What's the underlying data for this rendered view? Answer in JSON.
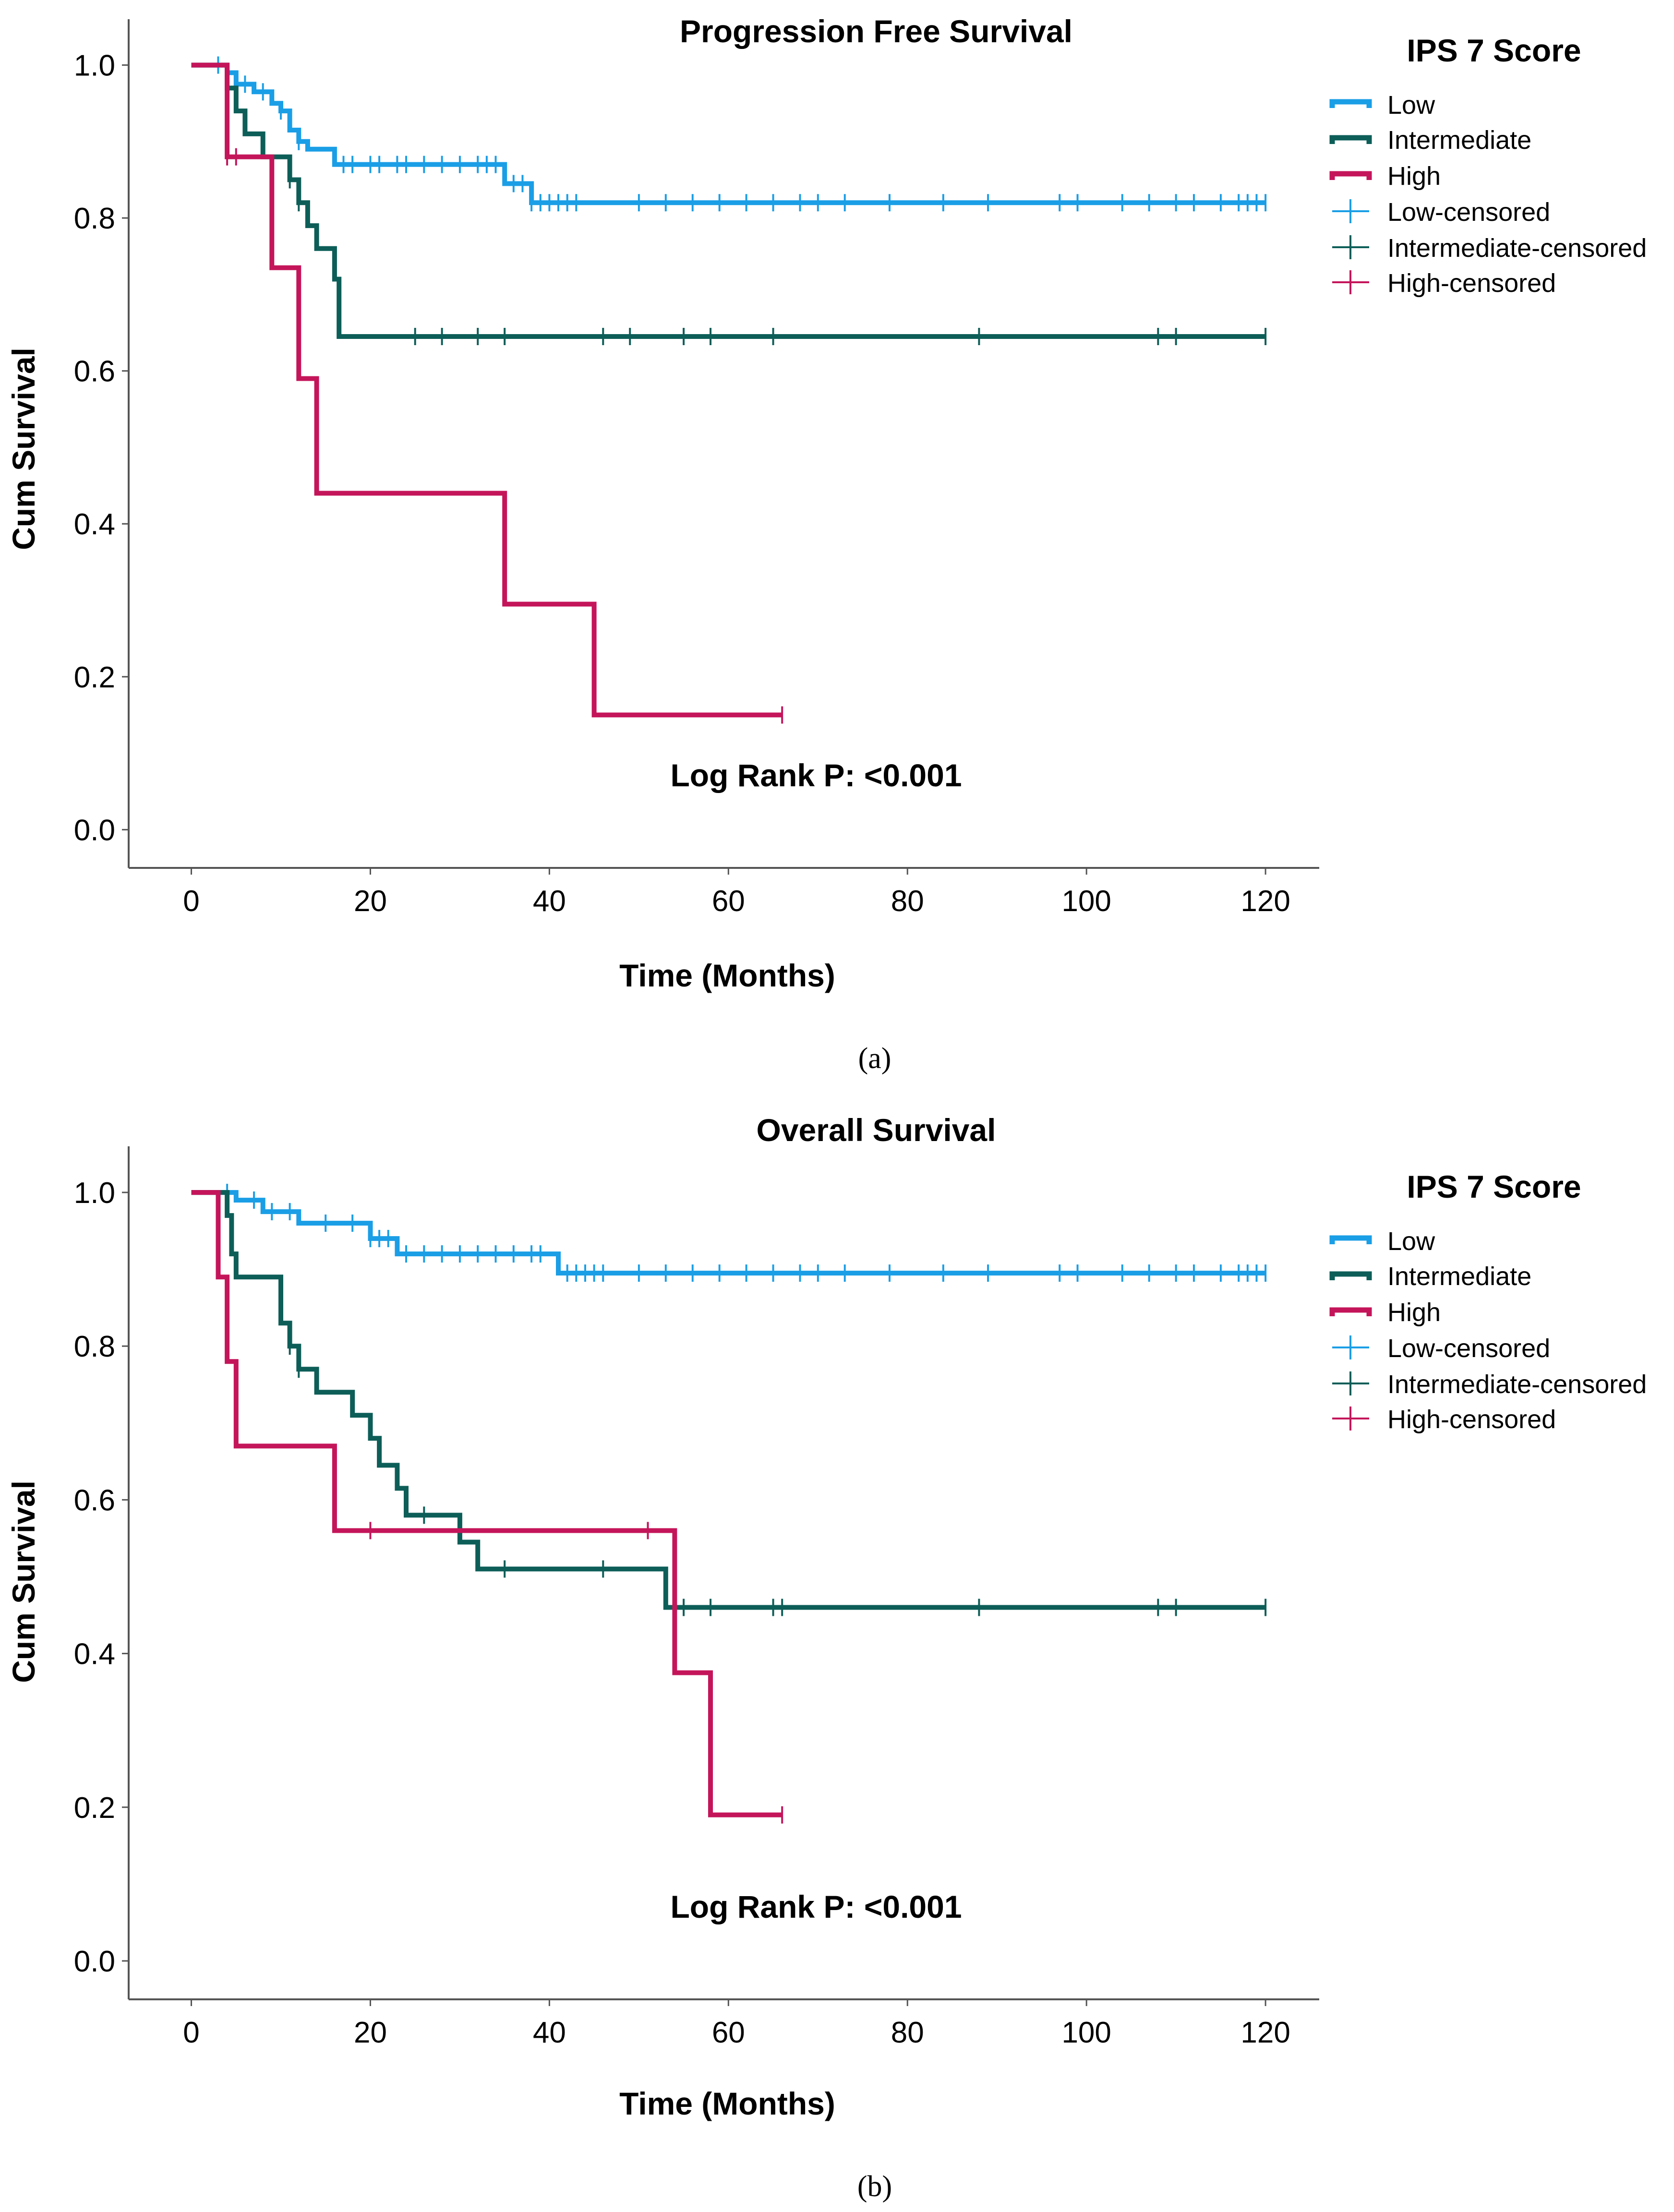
{
  "panels": [
    {
      "caption": "(a)",
      "chart_data": {
        "type": "line",
        "subtype": "kaplan-meier",
        "title": "Progression Free Survival",
        "xlabel": "Time (Months)",
        "ylabel": "Cum Survival",
        "xlim": [
          -7,
          126
        ],
        "ylim": [
          -0.05,
          1.06
        ],
        "xticks": [
          0,
          20,
          40,
          60,
          80,
          100,
          120
        ],
        "yticks": [
          0.0,
          0.2,
          0.4,
          0.6,
          0.8,
          1.0
        ],
        "xtick_labels": [
          "0",
          "20",
          "40",
          "60",
          "80",
          "100",
          "120"
        ],
        "ytick_labels": [
          "0.0",
          "0.2",
          "0.4",
          "0.6",
          "0.8",
          "1.0"
        ],
        "annotation": "Log Rank P: <0.001",
        "legend_title": "IPS 7 Score",
        "series": [
          {
            "name": "Low",
            "censored_label": "Low-censored",
            "color": "#1a9ee6",
            "points": [
              [
                0,
                1.0
              ],
              [
                4,
                1.0
              ],
              [
                4,
                0.99
              ],
              [
                5,
                0.99
              ],
              [
                5,
                0.975
              ],
              [
                7,
                0.975
              ],
              [
                7,
                0.965
              ],
              [
                9,
                0.965
              ],
              [
                9,
                0.95
              ],
              [
                10,
                0.95
              ],
              [
                10,
                0.94
              ],
              [
                11,
                0.94
              ],
              [
                11,
                0.915
              ],
              [
                12,
                0.915
              ],
              [
                12,
                0.9
              ],
              [
                13,
                0.9
              ],
              [
                13,
                0.89
              ],
              [
                16,
                0.89
              ],
              [
                16,
                0.87
              ],
              [
                35,
                0.87
              ],
              [
                35,
                0.845
              ],
              [
                38,
                0.845
              ],
              [
                38,
                0.82
              ],
              [
                120,
                0.82
              ]
            ],
            "censor_x": [
              3,
              6,
              8,
              10,
              12,
              17,
              18,
              20,
              21,
              23,
              24,
              26,
              28,
              30,
              32,
              33,
              34,
              36,
              37,
              38,
              39,
              40,
              41,
              42,
              43,
              50,
              53,
              56,
              59,
              62,
              65,
              68,
              70,
              73,
              78,
              84,
              89,
              97,
              99,
              104,
              107,
              110,
              112,
              115,
              117,
              118,
              119,
              120
            ]
          },
          {
            "name": "Intermediate",
            "censored_label": "Intermediate-censored",
            "color": "#0d5e58",
            "points": [
              [
                0,
                1.0
              ],
              [
                4,
                1.0
              ],
              [
                4,
                0.97
              ],
              [
                5,
                0.97
              ],
              [
                5,
                0.94
              ],
              [
                6,
                0.94
              ],
              [
                6,
                0.91
              ],
              [
                8,
                0.91
              ],
              [
                8,
                0.88
              ],
              [
                11,
                0.88
              ],
              [
                11,
                0.85
              ],
              [
                12,
                0.85
              ],
              [
                12,
                0.82
              ],
              [
                13,
                0.82
              ],
              [
                13,
                0.79
              ],
              [
                14,
                0.79
              ],
              [
                14,
                0.76
              ],
              [
                16,
                0.76
              ],
              [
                16,
                0.72
              ],
              [
                16.5,
                0.72
              ],
              [
                16.5,
                0.645
              ],
              [
                120,
                0.645
              ]
            ],
            "censor_x": [
              4,
              11,
              12,
              25,
              28,
              32,
              35,
              46,
              49,
              55,
              58,
              65,
              88,
              108,
              110,
              120
            ]
          },
          {
            "name": "High",
            "censored_label": "High-censored",
            "color": "#c4155a",
            "points": [
              [
                0,
                1.0
              ],
              [
                4,
                1.0
              ],
              [
                4,
                0.88
              ],
              [
                9,
                0.88
              ],
              [
                9,
                0.735
              ],
              [
                12,
                0.735
              ],
              [
                12,
                0.59
              ],
              [
                14,
                0.59
              ],
              [
                14,
                0.44
              ],
              [
                35,
                0.44
              ],
              [
                35,
                0.295
              ],
              [
                45,
                0.295
              ],
              [
                45,
                0.15
              ],
              [
                66,
                0.15
              ]
            ],
            "censor_x": [
              4,
              5,
              66
            ]
          }
        ]
      }
    },
    {
      "caption": "(b)",
      "chart_data": {
        "type": "line",
        "subtype": "kaplan-meier",
        "title": "Overall Survival",
        "xlabel": "Time (Months)",
        "ylabel": "Cum Survival",
        "xlim": [
          -7,
          126
        ],
        "ylim": [
          -0.05,
          1.06
        ],
        "xticks": [
          0,
          20,
          40,
          60,
          80,
          100,
          120
        ],
        "yticks": [
          0.0,
          0.2,
          0.4,
          0.6,
          0.8,
          1.0
        ],
        "xtick_labels": [
          "0",
          "20",
          "40",
          "60",
          "80",
          "100",
          "120"
        ],
        "ytick_labels": [
          "0.0",
          "0.2",
          "0.4",
          "0.6",
          "0.8",
          "1.0"
        ],
        "annotation": "Log Rank P: <0.001",
        "legend_title": "IPS 7 Score",
        "series": [
          {
            "name": "Low",
            "censored_label": "Low-censored",
            "color": "#1a9ee6",
            "points": [
              [
                0,
                1.0
              ],
              [
                5,
                1.0
              ],
              [
                5,
                0.99
              ],
              [
                8,
                0.99
              ],
              [
                8,
                0.975
              ],
              [
                12,
                0.975
              ],
              [
                12,
                0.96
              ],
              [
                20,
                0.96
              ],
              [
                20,
                0.94
              ],
              [
                23,
                0.94
              ],
              [
                23,
                0.92
              ],
              [
                41,
                0.92
              ],
              [
                41,
                0.895
              ],
              [
                120,
                0.895
              ]
            ],
            "censor_x": [
              4,
              7,
              9,
              11,
              15,
              18,
              20,
              21,
              22,
              24,
              26,
              28,
              30,
              32,
              34,
              36,
              38,
              39,
              42,
              43,
              44,
              45,
              46,
              50,
              53,
              56,
              59,
              62,
              65,
              68,
              70,
              73,
              78,
              84,
              89,
              97,
              99,
              104,
              107,
              110,
              112,
              115,
              117,
              118,
              119,
              120
            ]
          },
          {
            "name": "Intermediate",
            "censored_label": "Intermediate-censored",
            "color": "#0d5e58",
            "points": [
              [
                0,
                1.0
              ],
              [
                4,
                1.0
              ],
              [
                4,
                0.97
              ],
              [
                4.5,
                0.97
              ],
              [
                4.5,
                0.92
              ],
              [
                5,
                0.92
              ],
              [
                5,
                0.89
              ],
              [
                10,
                0.89
              ],
              [
                10,
                0.83
              ],
              [
                11,
                0.83
              ],
              [
                11,
                0.8
              ],
              [
                12,
                0.8
              ],
              [
                12,
                0.77
              ],
              [
                14,
                0.77
              ],
              [
                14,
                0.74
              ],
              [
                18,
                0.74
              ],
              [
                18,
                0.71
              ],
              [
                20,
                0.71
              ],
              [
                20,
                0.68
              ],
              [
                21,
                0.68
              ],
              [
                21,
                0.645
              ],
              [
                23,
                0.645
              ],
              [
                23,
                0.615
              ],
              [
                24,
                0.615
              ],
              [
                24,
                0.58
              ],
              [
                30,
                0.58
              ],
              [
                30,
                0.545
              ],
              [
                32,
                0.545
              ],
              [
                32,
                0.51
              ],
              [
                53,
                0.51
              ],
              [
                53,
                0.46
              ],
              [
                120,
                0.46
              ]
            ],
            "censor_x": [
              11,
              12,
              26,
              35,
              46,
              54,
              55,
              58,
              65,
              66,
              88,
              108,
              110,
              120
            ]
          },
          {
            "name": "High",
            "censored_label": "High-censored",
            "color": "#c4155a",
            "points": [
              [
                0,
                1.0
              ],
              [
                3,
                1.0
              ],
              [
                3,
                0.89
              ],
              [
                4,
                0.89
              ],
              [
                4,
                0.78
              ],
              [
                5,
                0.78
              ],
              [
                5,
                0.67
              ],
              [
                16,
                0.67
              ],
              [
                16,
                0.56
              ],
              [
                54,
                0.56
              ],
              [
                54,
                0.375
              ],
              [
                58,
                0.375
              ],
              [
                58,
                0.19
              ],
              [
                66,
                0.19
              ]
            ],
            "censor_x": [
              20,
              51,
              66
            ]
          }
        ]
      }
    }
  ]
}
